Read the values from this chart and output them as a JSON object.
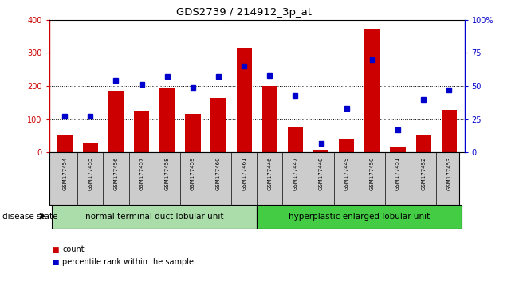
{
  "title": "GDS2739 / 214912_3p_at",
  "samples": [
    "GSM177454",
    "GSM177455",
    "GSM177456",
    "GSM177457",
    "GSM177458",
    "GSM177459",
    "GSM177460",
    "GSM177461",
    "GSM177446",
    "GSM177447",
    "GSM177448",
    "GSM177449",
    "GSM177450",
    "GSM177451",
    "GSM177452",
    "GSM177453"
  ],
  "counts": [
    50,
    30,
    185,
    125,
    195,
    115,
    165,
    315,
    200,
    75,
    8,
    42,
    370,
    15,
    50,
    128
  ],
  "percentiles": [
    27,
    27,
    54,
    51,
    57,
    49,
    57,
    65,
    58,
    43,
    7,
    33,
    70,
    17,
    40,
    47
  ],
  "group1_label": "normal terminal duct lobular unit",
  "group2_label": "hyperplastic enlarged lobular unit",
  "group1_count": 8,
  "group2_count": 8,
  "bar_color": "#cc0000",
  "dot_color": "#0000cc",
  "ylim_left": [
    0,
    400
  ],
  "ylim_right": [
    0,
    100
  ],
  "yticks_left": [
    0,
    100,
    200,
    300,
    400
  ],
  "yticks_right": [
    0,
    25,
    50,
    75,
    100
  ],
  "ytick_labels_right": [
    "0",
    "25",
    "50",
    "75",
    "100%"
  ],
  "ytick_labels_left": [
    "0",
    "100",
    "200",
    "300",
    "400"
  ],
  "group1_color": "#aaddaa",
  "group2_color": "#44cc44",
  "grid_color": "#000000",
  "bg_color": "#ffffff",
  "tick_label_bg": "#cccccc",
  "disease_state_text": "disease state",
  "legend_count": "count",
  "legend_percentile": "percentile rank within the sample"
}
